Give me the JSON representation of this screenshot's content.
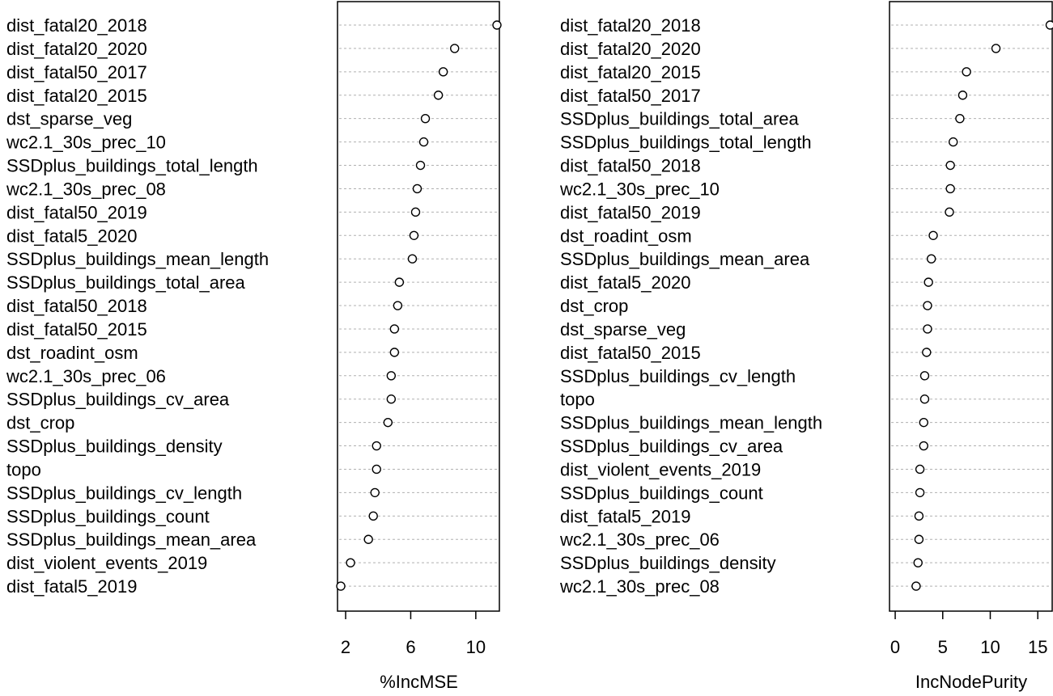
{
  "chart_data": [
    {
      "type": "dotchart",
      "xlabel": "%IncMSE",
      "xlim": [
        1.5,
        11.5
      ],
      "xticks": [
        2,
        6,
        10
      ],
      "grid": "dashed horizontal lines per row",
      "marker": "open-circle",
      "points": [
        {
          "label": "dist_fatal20_2018",
          "value": 11.3
        },
        {
          "label": "dist_fatal20_2020",
          "value": 8.7
        },
        {
          "label": "dist_fatal50_2017",
          "value": 8.0
        },
        {
          "label": "dist_fatal20_2015",
          "value": 7.7
        },
        {
          "label": "dst_sparse_veg",
          "value": 6.9
        },
        {
          "label": "wc2.1_30s_prec_10",
          "value": 6.8
        },
        {
          "label": "SSDplus_buildings_total_length",
          "value": 6.6
        },
        {
          "label": "wc2.1_30s_prec_08",
          "value": 6.4
        },
        {
          "label": "dist_fatal50_2019",
          "value": 6.3
        },
        {
          "label": "dist_fatal5_2020",
          "value": 6.2
        },
        {
          "label": "SSDplus_buildings_mean_length",
          "value": 6.1
        },
        {
          "label": "SSDplus_buildings_total_area",
          "value": 5.3
        },
        {
          "label": "dist_fatal50_2018",
          "value": 5.2
        },
        {
          "label": "dist_fatal50_2015",
          "value": 5.0
        },
        {
          "label": "dst_roadint_osm",
          "value": 5.0
        },
        {
          "label": "wc2.1_30s_prec_06",
          "value": 4.8
        },
        {
          "label": "SSDplus_buildings_cv_area",
          "value": 4.8
        },
        {
          "label": "dst_crop",
          "value": 4.6
        },
        {
          "label": "SSDplus_buildings_density",
          "value": 3.9
        },
        {
          "label": "topo",
          "value": 3.9
        },
        {
          "label": "SSDplus_buildings_cv_length",
          "value": 3.8
        },
        {
          "label": "SSDplus_buildings_count",
          "value": 3.7
        },
        {
          "label": "SSDplus_buildings_mean_area",
          "value": 3.4
        },
        {
          "label": "dist_violent_events_2019",
          "value": 2.3
        },
        {
          "label": "dist_fatal5_2019",
          "value": 1.7
        }
      ]
    },
    {
      "type": "dotchart",
      "xlabel": "IncNodePurity",
      "xlim": [
        -0.6,
        16.6
      ],
      "xticks": [
        0,
        5,
        10,
        15
      ],
      "grid": "dashed horizontal lines per row",
      "marker": "open-circle",
      "points": [
        {
          "label": "dist_fatal20_2018",
          "value": 16.3
        },
        {
          "label": "dist_fatal20_2020",
          "value": 10.6
        },
        {
          "label": "dist_fatal20_2015",
          "value": 7.5
        },
        {
          "label": "dist_fatal50_2017",
          "value": 7.1
        },
        {
          "label": "SSDplus_buildings_total_area",
          "value": 6.8
        },
        {
          "label": "SSDplus_buildings_total_length",
          "value": 6.1
        },
        {
          "label": "dist_fatal50_2018",
          "value": 5.8
        },
        {
          "label": "wc2.1_30s_prec_10",
          "value": 5.8
        },
        {
          "label": "dist_fatal50_2019",
          "value": 5.7
        },
        {
          "label": "dst_roadint_osm",
          "value": 4.0
        },
        {
          "label": "SSDplus_buildings_mean_area",
          "value": 3.8
        },
        {
          "label": "dist_fatal5_2020",
          "value": 3.5
        },
        {
          "label": "dst_crop",
          "value": 3.4
        },
        {
          "label": "dst_sparse_veg",
          "value": 3.4
        },
        {
          "label": "dist_fatal50_2015",
          "value": 3.3
        },
        {
          "label": "SSDplus_buildings_cv_length",
          "value": 3.1
        },
        {
          "label": "topo",
          "value": 3.1
        },
        {
          "label": "SSDplus_buildings_mean_length",
          "value": 3.0
        },
        {
          "label": "SSDplus_buildings_cv_area",
          "value": 3.0
        },
        {
          "label": "dist_violent_events_2019",
          "value": 2.6
        },
        {
          "label": "SSDplus_buildings_count",
          "value": 2.6
        },
        {
          "label": "dist_fatal5_2019",
          "value": 2.5
        },
        {
          "label": "wc2.1_30s_prec_06",
          "value": 2.5
        },
        {
          "label": "SSDplus_buildings_density",
          "value": 2.4
        },
        {
          "label": "wc2.1_30s_prec_08",
          "value": 2.2
        }
      ]
    }
  ]
}
